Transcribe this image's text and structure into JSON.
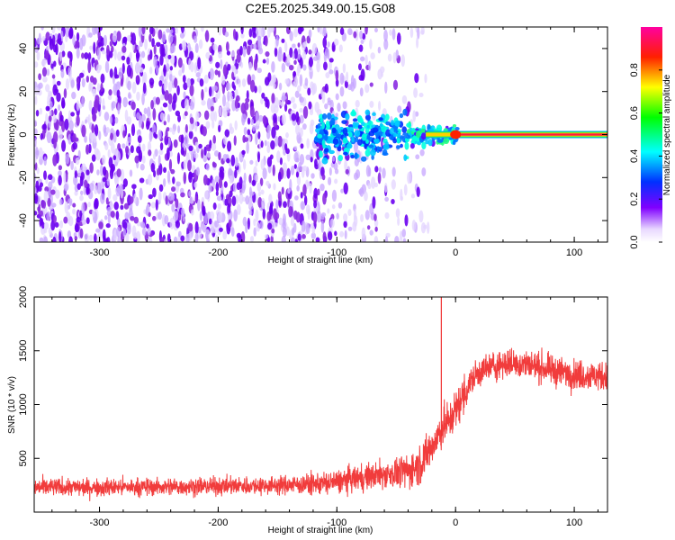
{
  "figure_title": "C2E5.2025.349.00.15.G08",
  "chart_data": [
    {
      "type": "heatmap",
      "panel": "top",
      "title": "",
      "xlabel": "Height of straight line (km)",
      "ylabel": "Frequency (Hz)",
      "xlim": [
        -355,
        128
      ],
      "ylim": [
        -50,
        50
      ],
      "x_ticks": [
        -300,
        -200,
        -100,
        0,
        100
      ],
      "y_ticks": [
        -40,
        -20,
        0,
        20,
        40
      ],
      "colorbar": {
        "label": "Normalized spectral amplitude",
        "range": [
          0,
          1
        ],
        "ticks": [
          "0.0",
          "0.2",
          "0.4",
          "0.6",
          "0.8"
        ],
        "colormap": "rainbow (white - violet - blue - cyan - green - yellow - red - magenta)"
      },
      "description_points": {
        "noise_region_x": [
          -355,
          -60
        ],
        "signal_onset_x": -120,
        "carrier_frequency_hz": 0,
        "carrier_steady_from_x": 0
      }
    },
    {
      "type": "line",
      "panel": "bottom",
      "title": "",
      "xlabel": "Height of straight line (km)",
      "ylabel": "SNR (10 * v/v)",
      "xlim": [
        -355,
        128
      ],
      "ylim": [
        0,
        2000
      ],
      "x_ticks": [
        -300,
        -200,
        -100,
        0,
        100
      ],
      "y_ticks": [
        500,
        1000,
        1500,
        2000
      ],
      "series": [
        {
          "color": "#f03232",
          "x": [
            -355,
            -300,
            -250,
            -200,
            -150,
            -120,
            -100,
            -80,
            -60,
            -40,
            -30,
            -20,
            -15,
            -10,
            -5,
            0,
            5,
            10,
            15,
            20,
            30,
            40,
            60,
            80,
            100,
            128
          ],
          "y": [
            230,
            230,
            235,
            240,
            250,
            260,
            280,
            320,
            350,
            380,
            450,
            600,
            700,
            800,
            850,
            950,
            1050,
            1150,
            1250,
            1300,
            1350,
            1380,
            1380,
            1320,
            1280,
            1260
          ]
        }
      ],
      "spike": {
        "x": -12,
        "y": 2000
      }
    }
  ]
}
